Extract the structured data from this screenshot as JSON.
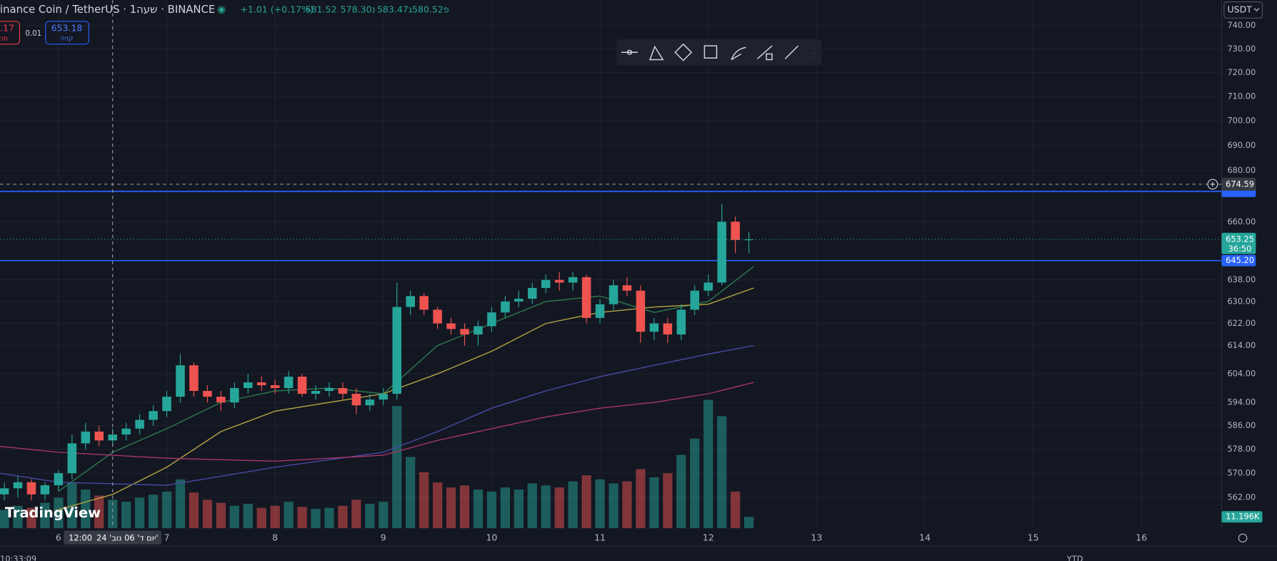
{
  "header": {
    "symbol": "inance Coin / TetherUS · 1שעה · BINANCE",
    "change": "+1.01 (+0.17%)",
    "ohlc": [
      "581.52",
      "נ578.30",
      "ג583.47",
      "פ580.52"
    ]
  },
  "trade": {
    "sell_price": ".17",
    "sell_label": "מכ",
    "spread": "0.01",
    "buy_price": "653.18",
    "buy_label": "קניה"
  },
  "currency": "USDT",
  "logo": "TradingView",
  "footer": {
    "clock": "10:33:09",
    "range": "YTD"
  },
  "chart_data": {
    "type": "candlestick",
    "up_color": "#26a69a",
    "down_color": "#ef5350",
    "x": [
      5.5,
      5.625,
      5.75,
      5.875,
      6.0,
      6.125,
      6.25,
      6.375,
      6.5,
      6.625,
      6.75,
      6.875,
      7.0,
      7.125,
      7.25,
      7.375,
      7.5,
      7.625,
      7.75,
      7.875,
      8.0,
      8.125,
      8.25,
      8.375,
      8.5,
      8.625,
      8.75,
      8.875,
      9.0,
      9.125,
      9.25,
      9.375,
      9.5,
      9.625,
      9.75,
      9.875,
      10.0,
      10.125,
      10.25,
      10.375,
      10.5,
      10.625,
      10.75,
      10.875,
      11.0,
      11.125,
      11.25,
      11.375,
      11.5,
      11.625,
      11.75,
      11.875,
      12.0,
      12.125,
      12.25,
      12.375
    ],
    "open": [
      563,
      565,
      567,
      563,
      566,
      570,
      580,
      584,
      581,
      583,
      585,
      588,
      591,
      596,
      607,
      598,
      596,
      594,
      599,
      601,
      600,
      599,
      603,
      597,
      598,
      599,
      597,
      593,
      595,
      597,
      628,
      632,
      627,
      622,
      620,
      618,
      621,
      626,
      630,
      631,
      635,
      638,
      637,
      639,
      624,
      629,
      636,
      634,
      619,
      622,
      618,
      627,
      634,
      637,
      660,
      653
    ],
    "high": [
      567,
      569,
      568,
      567,
      571,
      583,
      587,
      586,
      585,
      587,
      590,
      593,
      598,
      611,
      608,
      600,
      598,
      601,
      604,
      603,
      602,
      605,
      604,
      600,
      601,
      601,
      599,
      597,
      599,
      637,
      634,
      633,
      628,
      624,
      622,
      623,
      628,
      632,
      634,
      637,
      640,
      641,
      641,
      640,
      631,
      638,
      639,
      636,
      624,
      624,
      629,
      636,
      640,
      667,
      662,
      656
    ],
    "low": [
      561,
      562,
      561,
      561,
      564,
      568,
      578,
      579,
      579,
      581,
      583,
      586,
      589,
      594,
      596,
      594,
      591,
      592,
      597,
      598,
      597,
      597,
      596,
      595,
      596,
      595,
      590,
      591,
      593,
      595,
      625,
      625,
      620,
      618,
      614,
      614,
      619,
      624,
      628,
      629,
      633,
      634,
      634,
      622,
      622,
      627,
      632,
      615,
      616,
      615,
      616,
      625,
      632,
      636,
      648,
      648
    ],
    "close": [
      565,
      567,
      563,
      566,
      570,
      580,
      584,
      581,
      583,
      585,
      588,
      591,
      596,
      607,
      598,
      596,
      594,
      599,
      601,
      600,
      599,
      603,
      597,
      598,
      599,
      597,
      593,
      595,
      597,
      628,
      632,
      627,
      622,
      620,
      618,
      621,
      626,
      630,
      631,
      635,
      638,
      637,
      639,
      624,
      629,
      636,
      634,
      619,
      622,
      618,
      627,
      634,
      637,
      660,
      653,
      653.25
    ],
    "volume": {
      "values": [
        18,
        22,
        20,
        25,
        30,
        45,
        38,
        32,
        28,
        26,
        30,
        33,
        36,
        48,
        35,
        28,
        25,
        22,
        24,
        20,
        22,
        26,
        21,
        19,
        20,
        22,
        28,
        24,
        26,
        120,
        70,
        55,
        45,
        40,
        42,
        38,
        36,
        40,
        38,
        44,
        42,
        40,
        46,
        52,
        48,
        44,
        46,
        58,
        50,
        54,
        72,
        88,
        126,
        110,
        36,
        11.196
      ],
      "value_labels": [
        null,
        null,
        null,
        null,
        null,
        null,
        null,
        null,
        null,
        null,
        null,
        null,
        null,
        null,
        null,
        null,
        null,
        null,
        null,
        null,
        null,
        null,
        null,
        null,
        null,
        null,
        null,
        null,
        null,
        null,
        null,
        null,
        null,
        null,
        null,
        null,
        null,
        null,
        null,
        null,
        null,
        null,
        null,
        null,
        null,
        null,
        null,
        null,
        null,
        null,
        null,
        null,
        null,
        null,
        null,
        "11.196K"
      ]
    },
    "vlim": [
      0,
      300
    ],
    "moving_averages": [
      {
        "color": "#2e7d4f",
        "x": [
          6.0,
          6.5,
          7.0,
          7.5,
          8.0,
          8.5,
          9.0,
          9.5,
          10.0,
          10.5,
          11.0,
          11.5,
          12.0,
          12.42
        ],
        "values": [
          564,
          577,
          585,
          594,
          598,
          599,
          597,
          614,
          622,
          630,
          632,
          626,
          630,
          643
        ]
      },
      {
        "color": "#b5a642",
        "x": [
          6.0,
          6.5,
          7.0,
          7.5,
          8.0,
          8.5,
          9.0,
          9.5,
          10.0,
          10.5,
          11.0,
          11.5,
          12.0,
          12.42
        ],
        "values": [
          558,
          563,
          572,
          584,
          591,
          594,
          597,
          604,
          612,
          622,
          626,
          628,
          629,
          635
        ]
      },
      {
        "color": "#4a4aa8",
        "x": [
          5.46,
          6.0,
          7.0,
          8.0,
          9.0,
          9.5,
          10.0,
          10.5,
          11.0,
          11.5,
          12.0,
          12.42
        ],
        "values": [
          570,
          567,
          566,
          572,
          577,
          584,
          592,
          598,
          603,
          607,
          611,
          614
        ]
      },
      {
        "color": "#a8356e",
        "x": [
          5.46,
          6.0,
          7.0,
          8.0,
          9.0,
          9.5,
          10.0,
          10.5,
          11.0,
          11.5,
          12.0,
          12.42
        ],
        "values": [
          579,
          577,
          575,
          574,
          576,
          581,
          585,
          589,
          592,
          594,
          597,
          601
        ]
      }
    ],
    "log_scale": true,
    "grid": true,
    "ylim": [
      552,
      751
    ],
    "yticks": [
      {
        "value": 740,
        "label": "740.00"
      },
      {
        "value": 730,
        "label": "730.00"
      },
      {
        "value": 720,
        "label": "720.00"
      },
      {
        "value": 710,
        "label": "710.00"
      },
      {
        "value": 700,
        "label": "700.00"
      },
      {
        "value": 690,
        "label": "690.00"
      },
      {
        "value": 680,
        "label": "680.00"
      },
      {
        "value": 660,
        "label": "660.00"
      },
      {
        "value": 638,
        "label": "638.00"
      },
      {
        "value": 630,
        "label": "630.00"
      },
      {
        "value": 622,
        "label": "622.00"
      },
      {
        "value": 614,
        "label": "614.00"
      },
      {
        "value": 604,
        "label": "604.00"
      },
      {
        "value": 594,
        "label": "594.00"
      },
      {
        "value": 586,
        "label": "586.00"
      },
      {
        "value": 578,
        "label": "578.00"
      },
      {
        "value": 570,
        "label": "570.00"
      },
      {
        "value": 562,
        "label": "562.00"
      }
    ],
    "xlim": [
      5.46,
      16.74
    ],
    "xticks": [
      6,
      7,
      8,
      9,
      10,
      11,
      12,
      13,
      14,
      15,
      16
    ],
    "last_price": 653.25,
    "countdown": "36:50",
    "hlines": [
      {
        "value": 645.2,
        "label": "645.20",
        "color": "#2962ff"
      },
      {
        "value": 671.8,
        "color": "#2962ff"
      }
    ],
    "crosshair": {
      "x": 6.5,
      "time": "12:00",
      "date": "יום ד' 06 נוב' 24'",
      "y": 674.59
    }
  }
}
